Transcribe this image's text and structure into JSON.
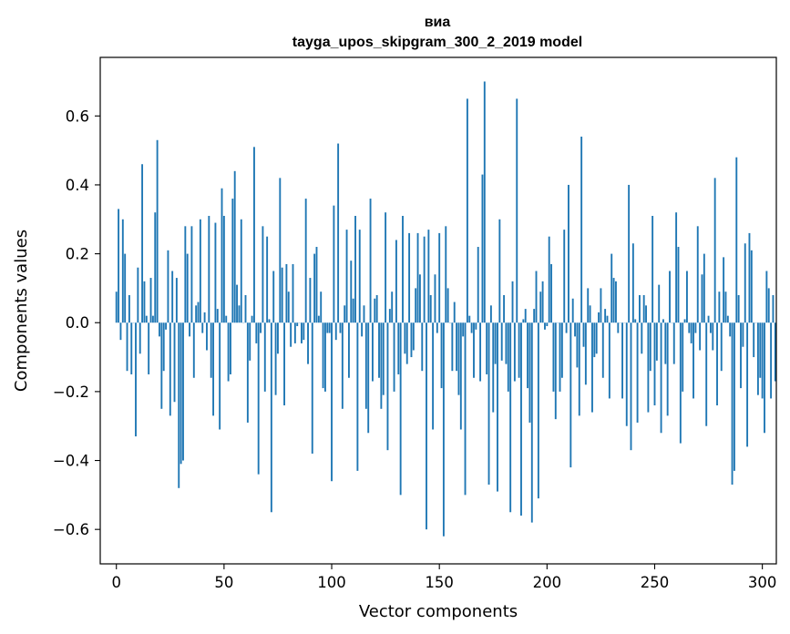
{
  "chart_data": {
    "type": "bar",
    "title": "виа",
    "subtitle": "tayga_upos_skipgram_300_2_2019 model",
    "xlabel": "Vector components",
    "ylabel": "Components values",
    "xlim": [
      -7.5,
      306.5
    ],
    "ylim": [
      -0.7,
      0.77
    ],
    "xticks": [
      0,
      50,
      100,
      150,
      200,
      250,
      300
    ],
    "yticks": [
      -0.6,
      -0.4,
      -0.2,
      0.0,
      0.2,
      0.4,
      0.6
    ],
    "xtick_labels": [
      "0",
      "50",
      "100",
      "150",
      "200",
      "250",
      "300"
    ],
    "ytick_labels": [
      "−0.6",
      "−0.4",
      "−0.2",
      "0.0",
      "0.2",
      "0.4",
      "0.6"
    ],
    "bar_color": "#1f77b4",
    "values": [
      0.09,
      0.33,
      -0.05,
      0.3,
      0.2,
      -0.14,
      0.08,
      -0.15,
      0.0,
      -0.33,
      0.16,
      -0.09,
      0.46,
      0.12,
      0.02,
      -0.15,
      0.13,
      0.02,
      0.32,
      0.53,
      -0.04,
      -0.25,
      -0.14,
      -0.02,
      0.21,
      -0.27,
      0.15,
      -0.23,
      0.13,
      -0.48,
      -0.41,
      -0.4,
      0.28,
      0.2,
      -0.04,
      0.28,
      -0.16,
      0.05,
      0.06,
      0.3,
      -0.03,
      0.03,
      -0.08,
      0.31,
      -0.16,
      -0.27,
      0.29,
      0.04,
      -0.31,
      0.39,
      0.31,
      0.02,
      -0.17,
      -0.15,
      0.36,
      0.44,
      0.11,
      0.05,
      0.3,
      0.0,
      0.08,
      -0.29,
      -0.11,
      0.02,
      0.51,
      -0.06,
      -0.44,
      -0.03,
      0.28,
      -0.2,
      0.25,
      0.01,
      -0.55,
      0.15,
      -0.21,
      -0.09,
      0.42,
      0.16,
      -0.24,
      0.17,
      0.09,
      -0.07,
      0.17,
      -0.06,
      -0.01,
      0.0,
      -0.06,
      -0.05,
      0.36,
      -0.12,
      0.13,
      -0.38,
      0.2,
      0.22,
      0.02,
      0.09,
      -0.19,
      -0.2,
      -0.03,
      -0.03,
      -0.46,
      0.34,
      -0.05,
      0.52,
      -0.03,
      -0.25,
      0.05,
      0.27,
      -0.16,
      0.18,
      0.07,
      0.31,
      -0.43,
      0.27,
      -0.04,
      0.05,
      -0.25,
      -0.32,
      0.36,
      -0.17,
      0.07,
      0.08,
      -0.16,
      -0.25,
      -0.21,
      0.32,
      -0.37,
      0.04,
      0.09,
      -0.2,
      0.24,
      -0.15,
      -0.5,
      0.31,
      -0.09,
      -0.12,
      0.26,
      -0.1,
      -0.08,
      0.1,
      0.26,
      0.14,
      -0.14,
      0.25,
      -0.6,
      0.27,
      0.08,
      -0.31,
      0.14,
      -0.03,
      0.26,
      -0.19,
      -0.62,
      0.28,
      0.1,
      0.0,
      -0.14,
      0.06,
      -0.14,
      -0.21,
      -0.31,
      -0.04,
      -0.5,
      0.65,
      0.02,
      -0.03,
      -0.16,
      -0.02,
      0.22,
      -0.17,
      0.43,
      0.7,
      -0.15,
      -0.47,
      0.05,
      -0.26,
      -0.12,
      -0.49,
      0.3,
      -0.11,
      0.08,
      -0.12,
      -0.2,
      -0.55,
      0.12,
      -0.17,
      0.65,
      -0.16,
      -0.56,
      0.01,
      0.04,
      -0.19,
      -0.29,
      -0.58,
      0.04,
      0.15,
      -0.51,
      0.09,
      0.12,
      -0.02,
      -0.01,
      0.25,
      0.17,
      -0.2,
      -0.28,
      0.0,
      -0.2,
      -0.16,
      0.27,
      -0.03,
      0.4,
      -0.42,
      0.07,
      -0.04,
      -0.13,
      -0.27,
      0.54,
      -0.07,
      -0.18,
      0.1,
      0.05,
      -0.26,
      -0.1,
      -0.09,
      0.03,
      0.1,
      -0.16,
      0.04,
      0.02,
      -0.22,
      0.2,
      0.13,
      0.12,
      -0.03,
      0.0,
      -0.22,
      0.0,
      -0.3,
      0.4,
      -0.37,
      0.23,
      0.01,
      -0.29,
      0.08,
      -0.09,
      0.08,
      0.05,
      -0.26,
      -0.14,
      0.31,
      -0.24,
      -0.11,
      0.11,
      -0.32,
      0.01,
      -0.12,
      -0.27,
      0.15,
      0.0,
      -0.12,
      0.32,
      0.22,
      -0.35,
      -0.2,
      0.01,
      0.15,
      -0.03,
      -0.06,
      -0.22,
      -0.03,
      0.28,
      -0.08,
      0.14,
      0.2,
      -0.3,
      0.02,
      -0.03,
      -0.08,
      0.42,
      -0.24,
      0.09,
      -0.14,
      0.19,
      0.09,
      0.02,
      -0.04,
      -0.47,
      -0.43,
      0.48,
      0.08,
      -0.19,
      -0.07,
      0.23,
      -0.36,
      0.26,
      0.21,
      -0.1,
      0.0,
      -0.21,
      -0.16,
      -0.22,
      -0.32,
      0.15,
      0.1,
      -0.22,
      0.08,
      -0.17
    ]
  }
}
